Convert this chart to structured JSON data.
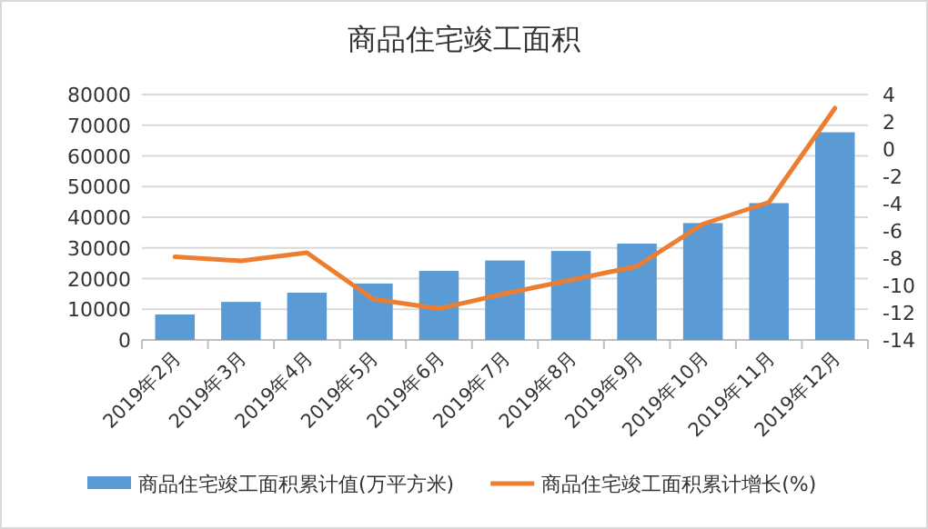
{
  "chart_data": {
    "type": "bar",
    "title": "商品住宅竣工面积",
    "categories": [
      "2019年2月",
      "2019年3月",
      "2019年4月",
      "2019年5月",
      "2019年6月",
      "2019年7月",
      "2019年8月",
      "2019年9月",
      "2019年10月",
      "2019年11月",
      "2019年12月"
    ],
    "series": [
      {
        "name": "商品住宅竣工面积累计值(万平方米)",
        "color": "#5b9bd5",
        "values": [
          8300,
          12400,
          15400,
          18400,
          22500,
          25900,
          29000,
          31400,
          38100,
          44600,
          67700
        ]
      },
      {
        "name": "商品住宅竣工面积累计增长(%)",
        "type": "line",
        "axis": "y2",
        "color": "#ed7d31",
        "values": [
          -7.9,
          -8.2,
          -7.6,
          -11.0,
          -11.7,
          -10.6,
          -9.6,
          -8.6,
          -5.5,
          -3.9,
          3.0
        ]
      }
    ],
    "ylim": [
      0,
      80000
    ],
    "yticks": [
      0,
      10000,
      20000,
      30000,
      40000,
      50000,
      60000,
      70000,
      80000
    ],
    "y2lim": [
      -14,
      4
    ],
    "y2ticks": [
      -14,
      -12,
      -10,
      -8,
      -6,
      -4,
      -2,
      0,
      2,
      4
    ],
    "grid": "y",
    "legend": "bottom"
  }
}
